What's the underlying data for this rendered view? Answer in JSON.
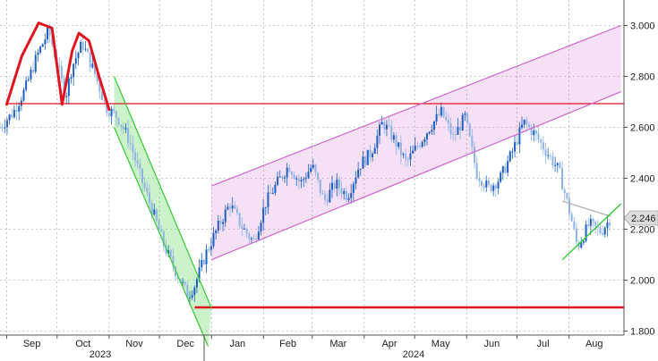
{
  "chart_data": {
    "type": "candlestick",
    "title": "",
    "xlabel": "",
    "ylabel": "",
    "ylim": [
      1.78,
      3.05
    ],
    "grid": true,
    "y_ticks": [
      "3.000",
      "2.800",
      "2.600",
      "2.400",
      "2.200",
      "2.000",
      "1.800"
    ],
    "y_tick_values": [
      3.0,
      2.8,
      2.6,
      2.4,
      2.2,
      2.0,
      1.8
    ],
    "x_months": [
      "Sep",
      "Oct",
      "Nov",
      "Dec",
      "Jan",
      "Feb",
      "Mar",
      "Apr",
      "May",
      "Jun",
      "Jul",
      "Aug"
    ],
    "x_years": [
      "2023",
      "2024"
    ],
    "last_price": "2.246",
    "colors": {
      "up": "#1f5fbf",
      "down": "#8fb4e3",
      "double_top": "#e0141e",
      "resistance_line": "#e0141e",
      "support_line": "#e0141e",
      "down_channel": "#33cc33",
      "up_channel": "#cc66cc",
      "triangle_upper": "#b0b0b0",
      "triangle_lower": "#33cc33",
      "price_tag": "#dddddd"
    },
    "series_ohlc": [],
    "close_path": [
      [
        "2023-08-28",
        2.6
      ],
      [
        "2023-09-05",
        2.66
      ],
      [
        "2023-09-12",
        2.75
      ],
      [
        "2023-09-19",
        2.88
      ],
      [
        "2023-09-26",
        2.98
      ],
      [
        "2023-10-03",
        2.8
      ],
      [
        "2023-10-06",
        2.72
      ],
      [
        "2023-10-10",
        2.84
      ],
      [
        "2023-10-16",
        2.93
      ],
      [
        "2023-10-23",
        2.82
      ],
      [
        "2023-10-30",
        2.68
      ],
      [
        "2023-11-06",
        2.64
      ],
      [
        "2023-11-13",
        2.55
      ],
      [
        "2023-11-20",
        2.4
      ],
      [
        "2023-11-27",
        2.27
      ],
      [
        "2023-12-04",
        2.13
      ],
      [
        "2023-12-11",
        2.03
      ],
      [
        "2023-12-18",
        1.94
      ],
      [
        "2023-12-22",
        1.98
      ],
      [
        "2023-12-29",
        2.11
      ],
      [
        "2024-01-05",
        2.21
      ],
      [
        "2024-01-12",
        2.3
      ],
      [
        "2024-01-19",
        2.21
      ],
      [
        "2024-01-26",
        2.15
      ],
      [
        "2024-02-02",
        2.3
      ],
      [
        "2024-02-09",
        2.38
      ],
      [
        "2024-02-16",
        2.45
      ],
      [
        "2024-02-23",
        2.38
      ],
      [
        "2024-03-01",
        2.45
      ],
      [
        "2024-03-08",
        2.31
      ],
      [
        "2024-03-15",
        2.38
      ],
      [
        "2024-03-22",
        2.33
      ],
      [
        "2024-03-29",
        2.45
      ],
      [
        "2024-04-05",
        2.5
      ],
      [
        "2024-04-12",
        2.62
      ],
      [
        "2024-04-19",
        2.55
      ],
      [
        "2024-04-26",
        2.46
      ],
      [
        "2024-05-03",
        2.53
      ],
      [
        "2024-05-10",
        2.6
      ],
      [
        "2024-05-17",
        2.66
      ],
      [
        "2024-05-24",
        2.56
      ],
      [
        "2024-05-31",
        2.64
      ],
      [
        "2024-06-07",
        2.42
      ],
      [
        "2024-06-14",
        2.36
      ],
      [
        "2024-06-21",
        2.4
      ],
      [
        "2024-06-28",
        2.5
      ],
      [
        "2024-07-05",
        2.62
      ],
      [
        "2024-07-12",
        2.57
      ],
      [
        "2024-07-19",
        2.5
      ],
      [
        "2024-07-26",
        2.43
      ],
      [
        "2024-08-02",
        2.25
      ],
      [
        "2024-08-06",
        2.13
      ],
      [
        "2024-08-13",
        2.22
      ],
      [
        "2024-08-20",
        2.19
      ],
      [
        "2024-08-26",
        2.246
      ]
    ],
    "annotations": {
      "double_top": [
        [
          "2023-09-01",
          2.69
        ],
        [
          "2023-09-10",
          2.88
        ],
        [
          "2023-09-20",
          3.01
        ],
        [
          "2023-09-28",
          2.99
        ],
        [
          "2023-10-04",
          2.69
        ],
        [
          "2023-10-10",
          2.9
        ],
        [
          "2023-10-14",
          2.97
        ],
        [
          "2023-10-20",
          2.94
        ],
        [
          "2023-10-26",
          2.8
        ],
        [
          "2023-11-01",
          2.67
        ]
      ],
      "neckline": {
        "from": [
          "2023-09-01",
          2.693
        ],
        "to": [
          "2024-09-01",
          2.693
        ]
      },
      "support": {
        "from": [
          "2023-12-22",
          1.893
        ],
        "to": [
          "2024-09-01",
          1.893
        ]
      },
      "down_channel": {
        "upper": [
          [
            "2023-11-04",
            2.8
          ],
          [
            "2024-01-01",
            1.89
          ]
        ],
        "lower": [
          [
            "2023-11-04",
            2.6
          ],
          [
            "2023-12-30",
            1.74
          ]
        ]
      },
      "up_channel": {
        "upper": [
          [
            "2024-01-01",
            2.37
          ],
          [
            "2024-09-01",
            3.0
          ]
        ],
        "lower": [
          [
            "2024-01-01",
            2.08
          ],
          [
            "2024-09-01",
            2.74
          ]
        ]
      },
      "triangle": {
        "upper": [
          [
            "2024-07-28",
            2.31
          ],
          [
            "2024-08-26",
            2.25
          ]
        ],
        "lower": [
          [
            "2024-07-28",
            2.08
          ],
          [
            "2024-09-01",
            2.3
          ]
        ]
      }
    }
  }
}
